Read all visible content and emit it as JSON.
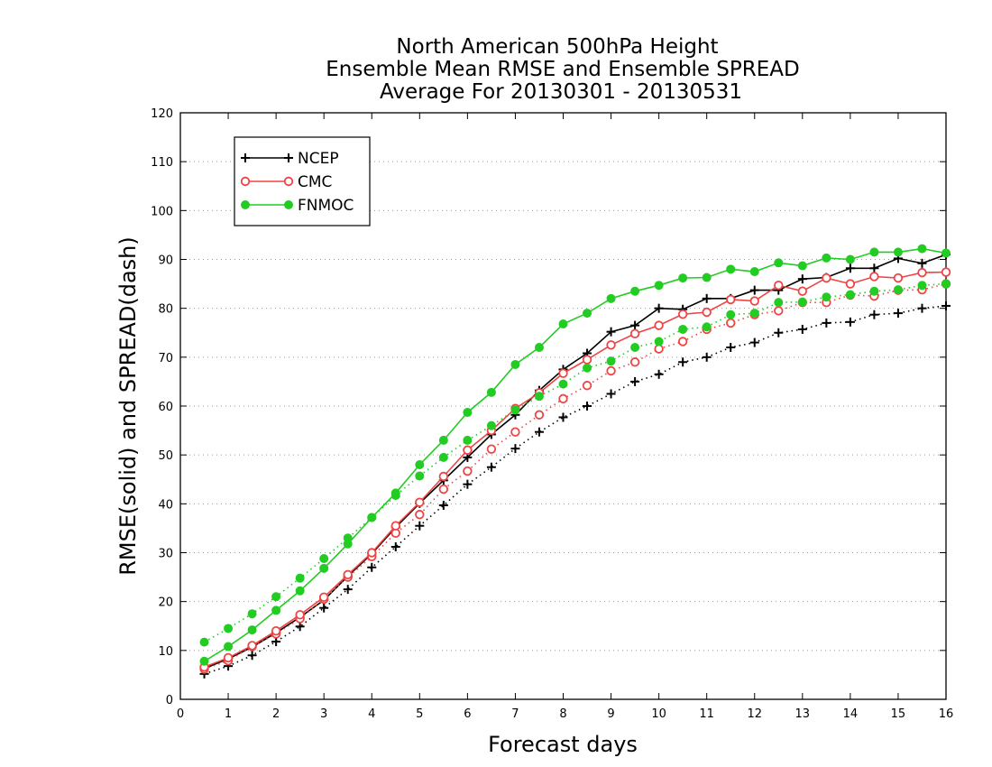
{
  "chart_data": {
    "type": "line",
    "title": [
      "North American 500hPa Height",
      "Ensemble Mean RMSE and Ensemble SPREAD",
      "Average For 20130301 - 20130531"
    ],
    "xlabel": "Forecast days",
    "ylabel": "RMSE(solid) and SPREAD(dash)",
    "xlim": [
      0,
      16
    ],
    "ylim": [
      0,
      120
    ],
    "xticks": [
      0,
      1,
      2,
      3,
      4,
      5,
      6,
      7,
      8,
      9,
      10,
      11,
      12,
      13,
      14,
      15,
      16
    ],
    "yticks": [
      0,
      10,
      20,
      30,
      40,
      50,
      60,
      70,
      80,
      90,
      100,
      110,
      120
    ],
    "grid": "horizontal dotted",
    "legend_position": "top-left",
    "x": [
      0.5,
      1,
      1.5,
      2,
      2.5,
      3,
      3.5,
      4,
      4.5,
      5,
      5.5,
      6,
      6.5,
      7,
      7.5,
      8,
      8.5,
      9,
      9.5,
      10,
      10.5,
      11,
      11.5,
      12,
      12.5,
      13,
      13.5,
      14,
      14.5,
      15,
      15.5,
      16
    ],
    "series": [
      {
        "name": "NCEP",
        "color": "#000000",
        "marker": "plus",
        "rmse": [
          6.3,
          8.3,
          10.7,
          13.6,
          16.8,
          20.3,
          25.2,
          29.8,
          35.2,
          40.1,
          44.8,
          49.5,
          54.2,
          58.2,
          63.2,
          67.5,
          70.8,
          75.2,
          76.5,
          80.0,
          79.8,
          82.0,
          82.0,
          83.7,
          83.7,
          86.0,
          86.3,
          88.2,
          88.2,
          90.2,
          89.2,
          91.0
        ],
        "spread": [
          5.2,
          6.8,
          9.0,
          11.8,
          14.9,
          18.7,
          22.5,
          27.0,
          31.2,
          35.5,
          39.7,
          44.0,
          47.5,
          51.3,
          54.7,
          57.7,
          60.0,
          62.5,
          65.0,
          66.5,
          69.0,
          70.0,
          72.0,
          73.0,
          75.0,
          75.7,
          77.0,
          77.2,
          78.7,
          79.0,
          80.0,
          80.5
        ]
      },
      {
        "name": "CMC",
        "color": "#ee4444",
        "marker": "open-circle",
        "rmse": [
          6.6,
          8.5,
          11.0,
          14.0,
          17.3,
          20.9,
          25.5,
          30.0,
          35.5,
          40.3,
          45.6,
          51.0,
          55.0,
          59.5,
          62.7,
          66.7,
          69.5,
          72.5,
          74.8,
          76.5,
          78.8,
          79.2,
          81.8,
          81.5,
          84.7,
          83.5,
          86.2,
          85.0,
          86.5,
          86.2,
          87.3,
          87.4
        ],
        "spread": [
          6.2,
          7.9,
          10.8,
          13.4,
          16.5,
          20.5,
          25.0,
          29.2,
          34.0,
          37.8,
          43.0,
          46.7,
          51.2,
          54.7,
          58.2,
          61.5,
          64.2,
          67.2,
          69.0,
          71.7,
          73.2,
          75.7,
          77.0,
          78.7,
          79.5,
          81.2,
          81.2,
          82.7,
          82.5,
          83.7,
          83.8,
          85.0
        ]
      },
      {
        "name": "FNMOC",
        "color": "#22cc22",
        "marker": "filled-circle",
        "rmse": [
          7.8,
          10.8,
          14.2,
          18.2,
          22.2,
          26.8,
          31.8,
          37.2,
          42.2,
          48.0,
          53.0,
          58.7,
          62.8,
          68.5,
          72.0,
          76.8,
          79.0,
          82.0,
          83.5,
          84.7,
          86.2,
          86.3,
          88.0,
          87.5,
          89.3,
          88.7,
          90.3,
          90.0,
          91.5,
          91.5,
          92.2,
          91.3
        ],
        "spread": [
          11.7,
          14.5,
          17.5,
          21.0,
          24.8,
          28.8,
          33.0,
          37.2,
          41.7,
          45.7,
          49.5,
          53.0,
          56.0,
          59.2,
          62.0,
          64.5,
          67.8,
          69.2,
          72.0,
          73.2,
          75.7,
          76.2,
          78.7,
          79.0,
          81.2,
          81.3,
          82.3,
          82.8,
          83.5,
          83.8,
          84.7,
          85.0
        ]
      }
    ]
  }
}
